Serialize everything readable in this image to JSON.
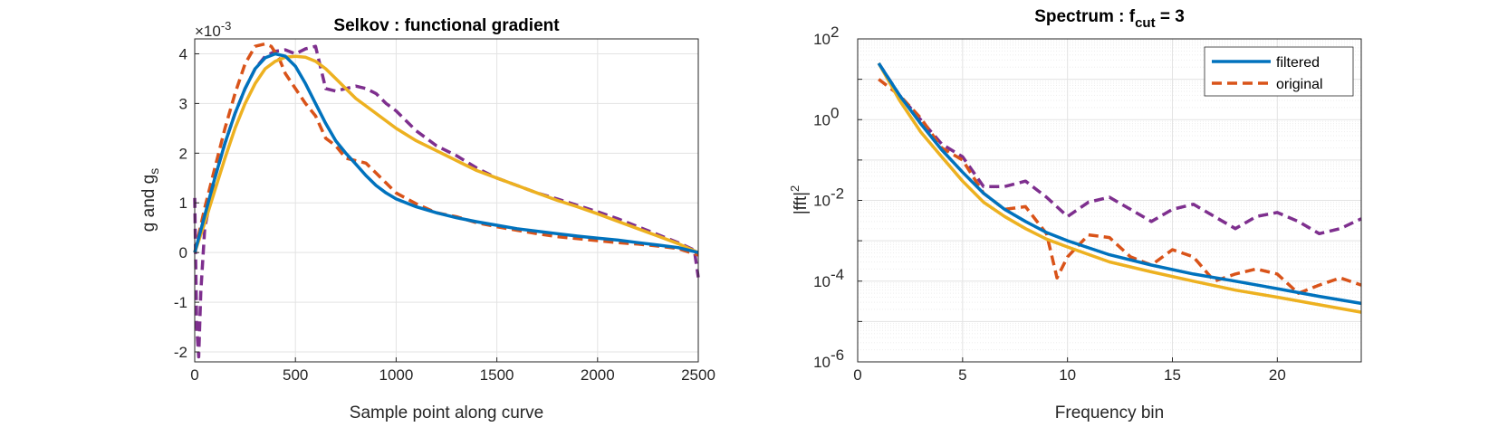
{
  "chart_data": [
    {
      "type": "line",
      "title": "Selkov : functional gradient",
      "xlabel": "Sample point along curve",
      "ylabel": {
        "main": "g and g",
        "sub": "s"
      },
      "y_exponent_label": {
        "prefix": "×10",
        "sup": "-3"
      },
      "xlim": [
        0,
        2500
      ],
      "ylim": [
        -2.2,
        4.3
      ],
      "xticks": [
        "0",
        "500",
        "1000",
        "1500",
        "2000",
        "2500"
      ],
      "yticks": [
        "-2",
        "-1",
        "0",
        "1",
        "2",
        "3",
        "4"
      ],
      "grid": true,
      "series": [
        {
          "color": "#0072BD",
          "style": "solid",
          "points": [
            [
              0,
              0
            ],
            [
              50,
              0.75
            ],
            [
              100,
              1.5
            ],
            [
              150,
              2.2
            ],
            [
              200,
              2.8
            ],
            [
              250,
              3.3
            ],
            [
              300,
              3.7
            ],
            [
              350,
              3.92
            ],
            [
              400,
              4.0
            ],
            [
              450,
              3.95
            ],
            [
              500,
              3.75
            ],
            [
              550,
              3.4
            ],
            [
              600,
              3.0
            ],
            [
              650,
              2.6
            ],
            [
              700,
              2.25
            ],
            [
              750,
              2.0
            ],
            [
              800,
              1.78
            ],
            [
              850,
              1.55
            ],
            [
              900,
              1.35
            ],
            [
              950,
              1.2
            ],
            [
              1000,
              1.08
            ],
            [
              1100,
              0.92
            ],
            [
              1200,
              0.8
            ],
            [
              1300,
              0.7
            ],
            [
              1400,
              0.62
            ],
            [
              1500,
              0.55
            ],
            [
              1600,
              0.48
            ],
            [
              1700,
              0.43
            ],
            [
              1800,
              0.38
            ],
            [
              1900,
              0.33
            ],
            [
              2000,
              0.29
            ],
            [
              2100,
              0.25
            ],
            [
              2200,
              0.2
            ],
            [
              2300,
              0.15
            ],
            [
              2400,
              0.1
            ],
            [
              2500,
              0
            ]
          ]
        },
        {
          "color": "#EDB120",
          "style": "solid",
          "points": [
            [
              0,
              0
            ],
            [
              50,
              0.6
            ],
            [
              100,
              1.25
            ],
            [
              150,
              1.9
            ],
            [
              200,
              2.5
            ],
            [
              250,
              3.0
            ],
            [
              300,
              3.4
            ],
            [
              350,
              3.7
            ],
            [
              400,
              3.85
            ],
            [
              450,
              3.93
            ],
            [
              500,
              3.95
            ],
            [
              550,
              3.93
            ],
            [
              600,
              3.85
            ],
            [
              650,
              3.7
            ],
            [
              700,
              3.5
            ],
            [
              750,
              3.3
            ],
            [
              800,
              3.1
            ],
            [
              900,
              2.8
            ],
            [
              1000,
              2.5
            ],
            [
              1100,
              2.25
            ],
            [
              1200,
              2.05
            ],
            [
              1300,
              1.85
            ],
            [
              1400,
              1.65
            ],
            [
              1500,
              1.5
            ],
            [
              1600,
              1.35
            ],
            [
              1700,
              1.2
            ],
            [
              1800,
              1.05
            ],
            [
              1900,
              0.92
            ],
            [
              2000,
              0.78
            ],
            [
              2100,
              0.63
            ],
            [
              2200,
              0.48
            ],
            [
              2300,
              0.33
            ],
            [
              2400,
              0.18
            ],
            [
              2500,
              0
            ]
          ]
        },
        {
          "color": "#D95319",
          "style": "dashed",
          "points": [
            [
              0,
              0
            ],
            [
              50,
              0.9
            ],
            [
              100,
              1.7
            ],
            [
              150,
              2.5
            ],
            [
              200,
              3.2
            ],
            [
              250,
              3.8
            ],
            [
              300,
              4.15
            ],
            [
              350,
              4.2
            ],
            [
              380,
              4.15
            ],
            [
              420,
              3.9
            ],
            [
              450,
              3.6
            ],
            [
              500,
              3.3
            ],
            [
              550,
              3.0
            ],
            [
              600,
              2.75
            ],
            [
              650,
              2.3
            ],
            [
              700,
              2.15
            ],
            [
              750,
              1.9
            ],
            [
              800,
              1.85
            ],
            [
              850,
              1.8
            ],
            [
              900,
              1.6
            ],
            [
              950,
              1.4
            ],
            [
              1000,
              1.2
            ],
            [
              1100,
              0.98
            ],
            [
              1200,
              0.8
            ],
            [
              1300,
              0.72
            ],
            [
              1400,
              0.6
            ],
            [
              1500,
              0.52
            ],
            [
              1600,
              0.45
            ],
            [
              1700,
              0.38
            ],
            [
              1800,
              0.32
            ],
            [
              1900,
              0.28
            ],
            [
              2000,
              0.24
            ],
            [
              2100,
              0.2
            ],
            [
              2200,
              0.17
            ],
            [
              2300,
              0.13
            ],
            [
              2400,
              0.08
            ],
            [
              2500,
              -0.05
            ]
          ]
        },
        {
          "color": "#7E2F8E",
          "style": "dashed",
          "points": [
            [
              0,
              1.1
            ],
            [
              10,
              -1.5
            ],
            [
              20,
              -2.1
            ],
            [
              30,
              -0.8
            ],
            [
              50,
              0.5
            ],
            [
              100,
              1.5
            ],
            [
              150,
              2.2
            ],
            [
              200,
              2.8
            ],
            [
              250,
              3.3
            ],
            [
              300,
              3.7
            ],
            [
              350,
              3.95
            ],
            [
              400,
              4.05
            ],
            [
              450,
              4.08
            ],
            [
              500,
              4.0
            ],
            [
              550,
              4.1
            ],
            [
              600,
              4.15
            ],
            [
              650,
              3.3
            ],
            [
              700,
              3.25
            ],
            [
              750,
              3.3
            ],
            [
              800,
              3.35
            ],
            [
              850,
              3.3
            ],
            [
              900,
              3.2
            ],
            [
              950,
              3.0
            ],
            [
              1000,
              2.85
            ],
            [
              1050,
              2.65
            ],
            [
              1100,
              2.45
            ],
            [
              1150,
              2.3
            ],
            [
              1200,
              2.15
            ],
            [
              1300,
              1.95
            ],
            [
              1400,
              1.7
            ],
            [
              1500,
              1.5
            ],
            [
              1600,
              1.35
            ],
            [
              1700,
              1.2
            ],
            [
              1800,
              1.08
            ],
            [
              1900,
              0.95
            ],
            [
              2000,
              0.82
            ],
            [
              2100,
              0.68
            ],
            [
              2200,
              0.52
            ],
            [
              2300,
              0.36
            ],
            [
              2400,
              0.2
            ],
            [
              2480,
              0.05
            ],
            [
              2500,
              -0.5
            ]
          ]
        }
      ]
    },
    {
      "type": "line",
      "title": {
        "main": "Spectrum : f",
        "sub": "cut",
        "suffix": " = 3"
      },
      "xlabel": "Frequency bin",
      "ylabel": {
        "main": "|fft|",
        "sup": "2"
      },
      "xlim": [
        0,
        24
      ],
      "ylim_exp": [
        -6,
        2
      ],
      "yscale": "log",
      "xticks": [
        "0",
        "5",
        "10",
        "15",
        "20"
      ],
      "yticks": [
        {
          "base": "10",
          "exp": "2"
        },
        {
          "base": "10",
          "exp": "0"
        },
        {
          "base": "10",
          "exp": "-2"
        },
        {
          "base": "10",
          "exp": "-4"
        },
        {
          "base": "10",
          "exp": "-6"
        }
      ],
      "grid": true,
      "legend": {
        "placement": "top-right",
        "entries": [
          {
            "label": "filtered",
            "color": "#0072BD",
            "style": "solid"
          },
          {
            "label": "original",
            "color": "#D95319",
            "style": "dashed"
          }
        ]
      },
      "series": [
        {
          "name": "filtered",
          "color": "#0072BD",
          "style": "solid",
          "points": [
            [
              1,
              25
            ],
            [
              2,
              4
            ],
            [
              3,
              0.8
            ],
            [
              4,
              0.18
            ],
            [
              5,
              0.05
            ],
            [
              6,
              0.015
            ],
            [
              7,
              0.006
            ],
            [
              8,
              0.003
            ],
            [
              9,
              0.0016
            ],
            [
              10,
              0.001
            ],
            [
              12,
              0.00045
            ],
            [
              14,
              0.00025
            ],
            [
              16,
              0.00015
            ],
            [
              18,
              0.0001
            ],
            [
              20,
              6.5e-05
            ],
            [
              22,
              4.2e-05
            ],
            [
              24,
              2.8e-05
            ]
          ]
        },
        {
          "name": "original",
          "color": "#D95319",
          "style": "dashed",
          "points": [
            [
              1,
              10
            ],
            [
              2,
              4
            ],
            [
              3,
              1.1
            ],
            [
              4,
              0.2
            ],
            [
              5,
              0.1
            ],
            [
              6,
              0.015
            ],
            [
              7,
              0.006
            ],
            [
              8,
              0.007
            ],
            [
              9,
              0.0015
            ],
            [
              9.5,
              0.00012
            ],
            [
              10,
              0.0004
            ],
            [
              11,
              0.0014
            ],
            [
              12,
              0.0012
            ],
            [
              13,
              0.0004
            ],
            [
              14,
              0.00025
            ],
            [
              15,
              0.0006
            ],
            [
              16,
              0.0004
            ],
            [
              17,
              0.0001
            ],
            [
              18,
              0.00015
            ],
            [
              19,
              0.0002
            ],
            [
              20,
              0.00015
            ],
            [
              21,
              5e-05
            ],
            [
              22,
              8e-05
            ],
            [
              23,
              0.00012
            ],
            [
              24,
              8e-05
            ]
          ]
        },
        {
          "color": "#7E2F8E",
          "style": "dashed",
          "points": [
            [
              1,
              25
            ],
            [
              2,
              4
            ],
            [
              3,
              1.0
            ],
            [
              4,
              0.25
            ],
            [
              5,
              0.12
            ],
            [
              6,
              0.022
            ],
            [
              7,
              0.022
            ],
            [
              8,
              0.03
            ],
            [
              9,
              0.012
            ],
            [
              10,
              0.004
            ],
            [
              11,
              0.009
            ],
            [
              12,
              0.012
            ],
            [
              13,
              0.006
            ],
            [
              14,
              0.003
            ],
            [
              15,
              0.006
            ],
            [
              16,
              0.008
            ],
            [
              17,
              0.004
            ],
            [
              18,
              0.002
            ],
            [
              19,
              0.004
            ],
            [
              20,
              0.005
            ],
            [
              21,
              0.003
            ],
            [
              22,
              0.0015
            ],
            [
              23,
              0.002
            ],
            [
              24,
              0.0035
            ]
          ]
        },
        {
          "color": "#EDB120",
          "style": "solid",
          "points": [
            [
              1,
              25
            ],
            [
              2,
              3
            ],
            [
              3,
              0.5
            ],
            [
              4,
              0.12
            ],
            [
              5,
              0.03
            ],
            [
              6,
              0.009
            ],
            [
              7,
              0.004
            ],
            [
              8,
              0.002
            ],
            [
              9,
              0.0011
            ],
            [
              10,
              0.0007
            ],
            [
              12,
              0.0003
            ],
            [
              14,
              0.00017
            ],
            [
              16,
              0.0001
            ],
            [
              18,
              6e-05
            ],
            [
              20,
              4e-05
            ],
            [
              22,
              2.6e-05
            ],
            [
              24,
              1.7e-05
            ]
          ]
        }
      ]
    }
  ]
}
